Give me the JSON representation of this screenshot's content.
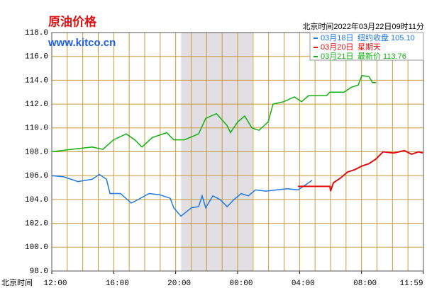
{
  "chart_data": {
    "type": "line",
    "title": "原油价格",
    "subtitle": "www.kitco.cn",
    "timestamp": "北京时间2022年03月22日09时11分",
    "xlabel": "北京时间",
    "xlim": [
      0,
      24
    ],
    "xticks": [
      {
        "value": 0,
        "label": "12:00"
      },
      {
        "value": 4,
        "label": "16:00"
      },
      {
        "value": 8,
        "label": "20:00"
      },
      {
        "value": 12,
        "label": "00:00"
      },
      {
        "value": 16,
        "label": "04:00"
      },
      {
        "value": 20,
        "label": "08:00"
      },
      {
        "value": 23.98,
        "label": "11:59"
      }
    ],
    "xgrid_step": 1,
    "ylim": [
      98,
      118
    ],
    "yticks": [
      {
        "value": 98,
        "label": "98.0"
      },
      {
        "value": 100,
        "label": "100.0"
      },
      {
        "value": 102,
        "label": "102.0"
      },
      {
        "value": 104,
        "label": "104.0"
      },
      {
        "value": 106,
        "label": "106.0"
      },
      {
        "value": 108,
        "label": "108.0"
      },
      {
        "value": 110,
        "label": "110.0"
      },
      {
        "value": 112,
        "label": "112.0"
      },
      {
        "value": 114,
        "label": "114.0"
      },
      {
        "value": 116,
        "label": "116.0"
      },
      {
        "value": 118,
        "label": "118.0"
      }
    ],
    "grid": true,
    "shade": [
      8.35,
      12.95
    ],
    "series": [
      {
        "name": "03月18日",
        "legend_text": "纽约收盘 105.10",
        "color": "#1e78e6",
        "x": [
          0,
          0.78,
          1.69,
          2.61,
          3.07,
          3.53,
          3.76,
          4.44,
          5.13,
          5.59,
          6.28,
          6.96,
          7.65,
          7.88,
          8.34,
          9.02,
          9.48,
          9.71,
          9.94,
          10.4,
          10.86,
          11.32,
          11.77,
          12.23,
          12.69,
          13.15,
          13.83,
          14.52,
          15.21,
          15.9,
          16.35,
          16.81
        ],
        "values": [
          106.0,
          105.9,
          105.5,
          105.7,
          106.1,
          105.7,
          104.5,
          104.5,
          103.7,
          104.0,
          104.5,
          104.4,
          104.1,
          103.3,
          102.6,
          103.3,
          103.4,
          104.3,
          103.3,
          104.3,
          104.0,
          103.4,
          104.0,
          104.5,
          104.3,
          104.8,
          104.7,
          104.8,
          104.9,
          104.8,
          105.2,
          105.6
        ]
      },
      {
        "name": "03月20日",
        "legend_text": "星期天",
        "color": "#e01010",
        "x": [
          15.9,
          17.96,
          18.0,
          18.19,
          18.64,
          19.1,
          19.56,
          20.02,
          20.48,
          20.94,
          21.39,
          22.08,
          22.77,
          23.23,
          23.69,
          23.96
        ],
        "values": [
          105.1,
          105.1,
          104.7,
          105.4,
          105.8,
          106.3,
          106.5,
          106.8,
          107.0,
          107.4,
          108.0,
          107.9,
          108.1,
          107.8,
          108.0,
          107.9
        ]
      },
      {
        "name": "03月21日",
        "legend_text": "最新价 113.76",
        "color": "#10b010",
        "x": [
          0,
          1.24,
          2.61,
          3.3,
          3.99,
          4.81,
          5.36,
          5.82,
          6.5,
          7.42,
          7.88,
          8.57,
          9.48,
          9.94,
          10.63,
          11.32,
          11.54,
          12.0,
          12.46,
          12.92,
          13.38,
          13.97,
          14.29,
          14.98,
          15.67,
          16.13,
          16.58,
          17.73,
          17.96,
          18.87,
          19.33,
          19.79,
          20.02,
          20.48,
          20.71,
          20.94
        ],
        "values": [
          108.0,
          108.2,
          108.4,
          108.2,
          109.0,
          109.5,
          109.0,
          108.4,
          109.2,
          109.6,
          109.0,
          109.0,
          109.5,
          110.8,
          111.2,
          110.2,
          109.6,
          110.5,
          111.0,
          110.0,
          109.8,
          110.5,
          112.0,
          112.2,
          112.6,
          112.2,
          112.7,
          112.7,
          113.0,
          113.0,
          113.4,
          113.6,
          114.4,
          114.3,
          113.8,
          113.8
        ]
      }
    ]
  }
}
